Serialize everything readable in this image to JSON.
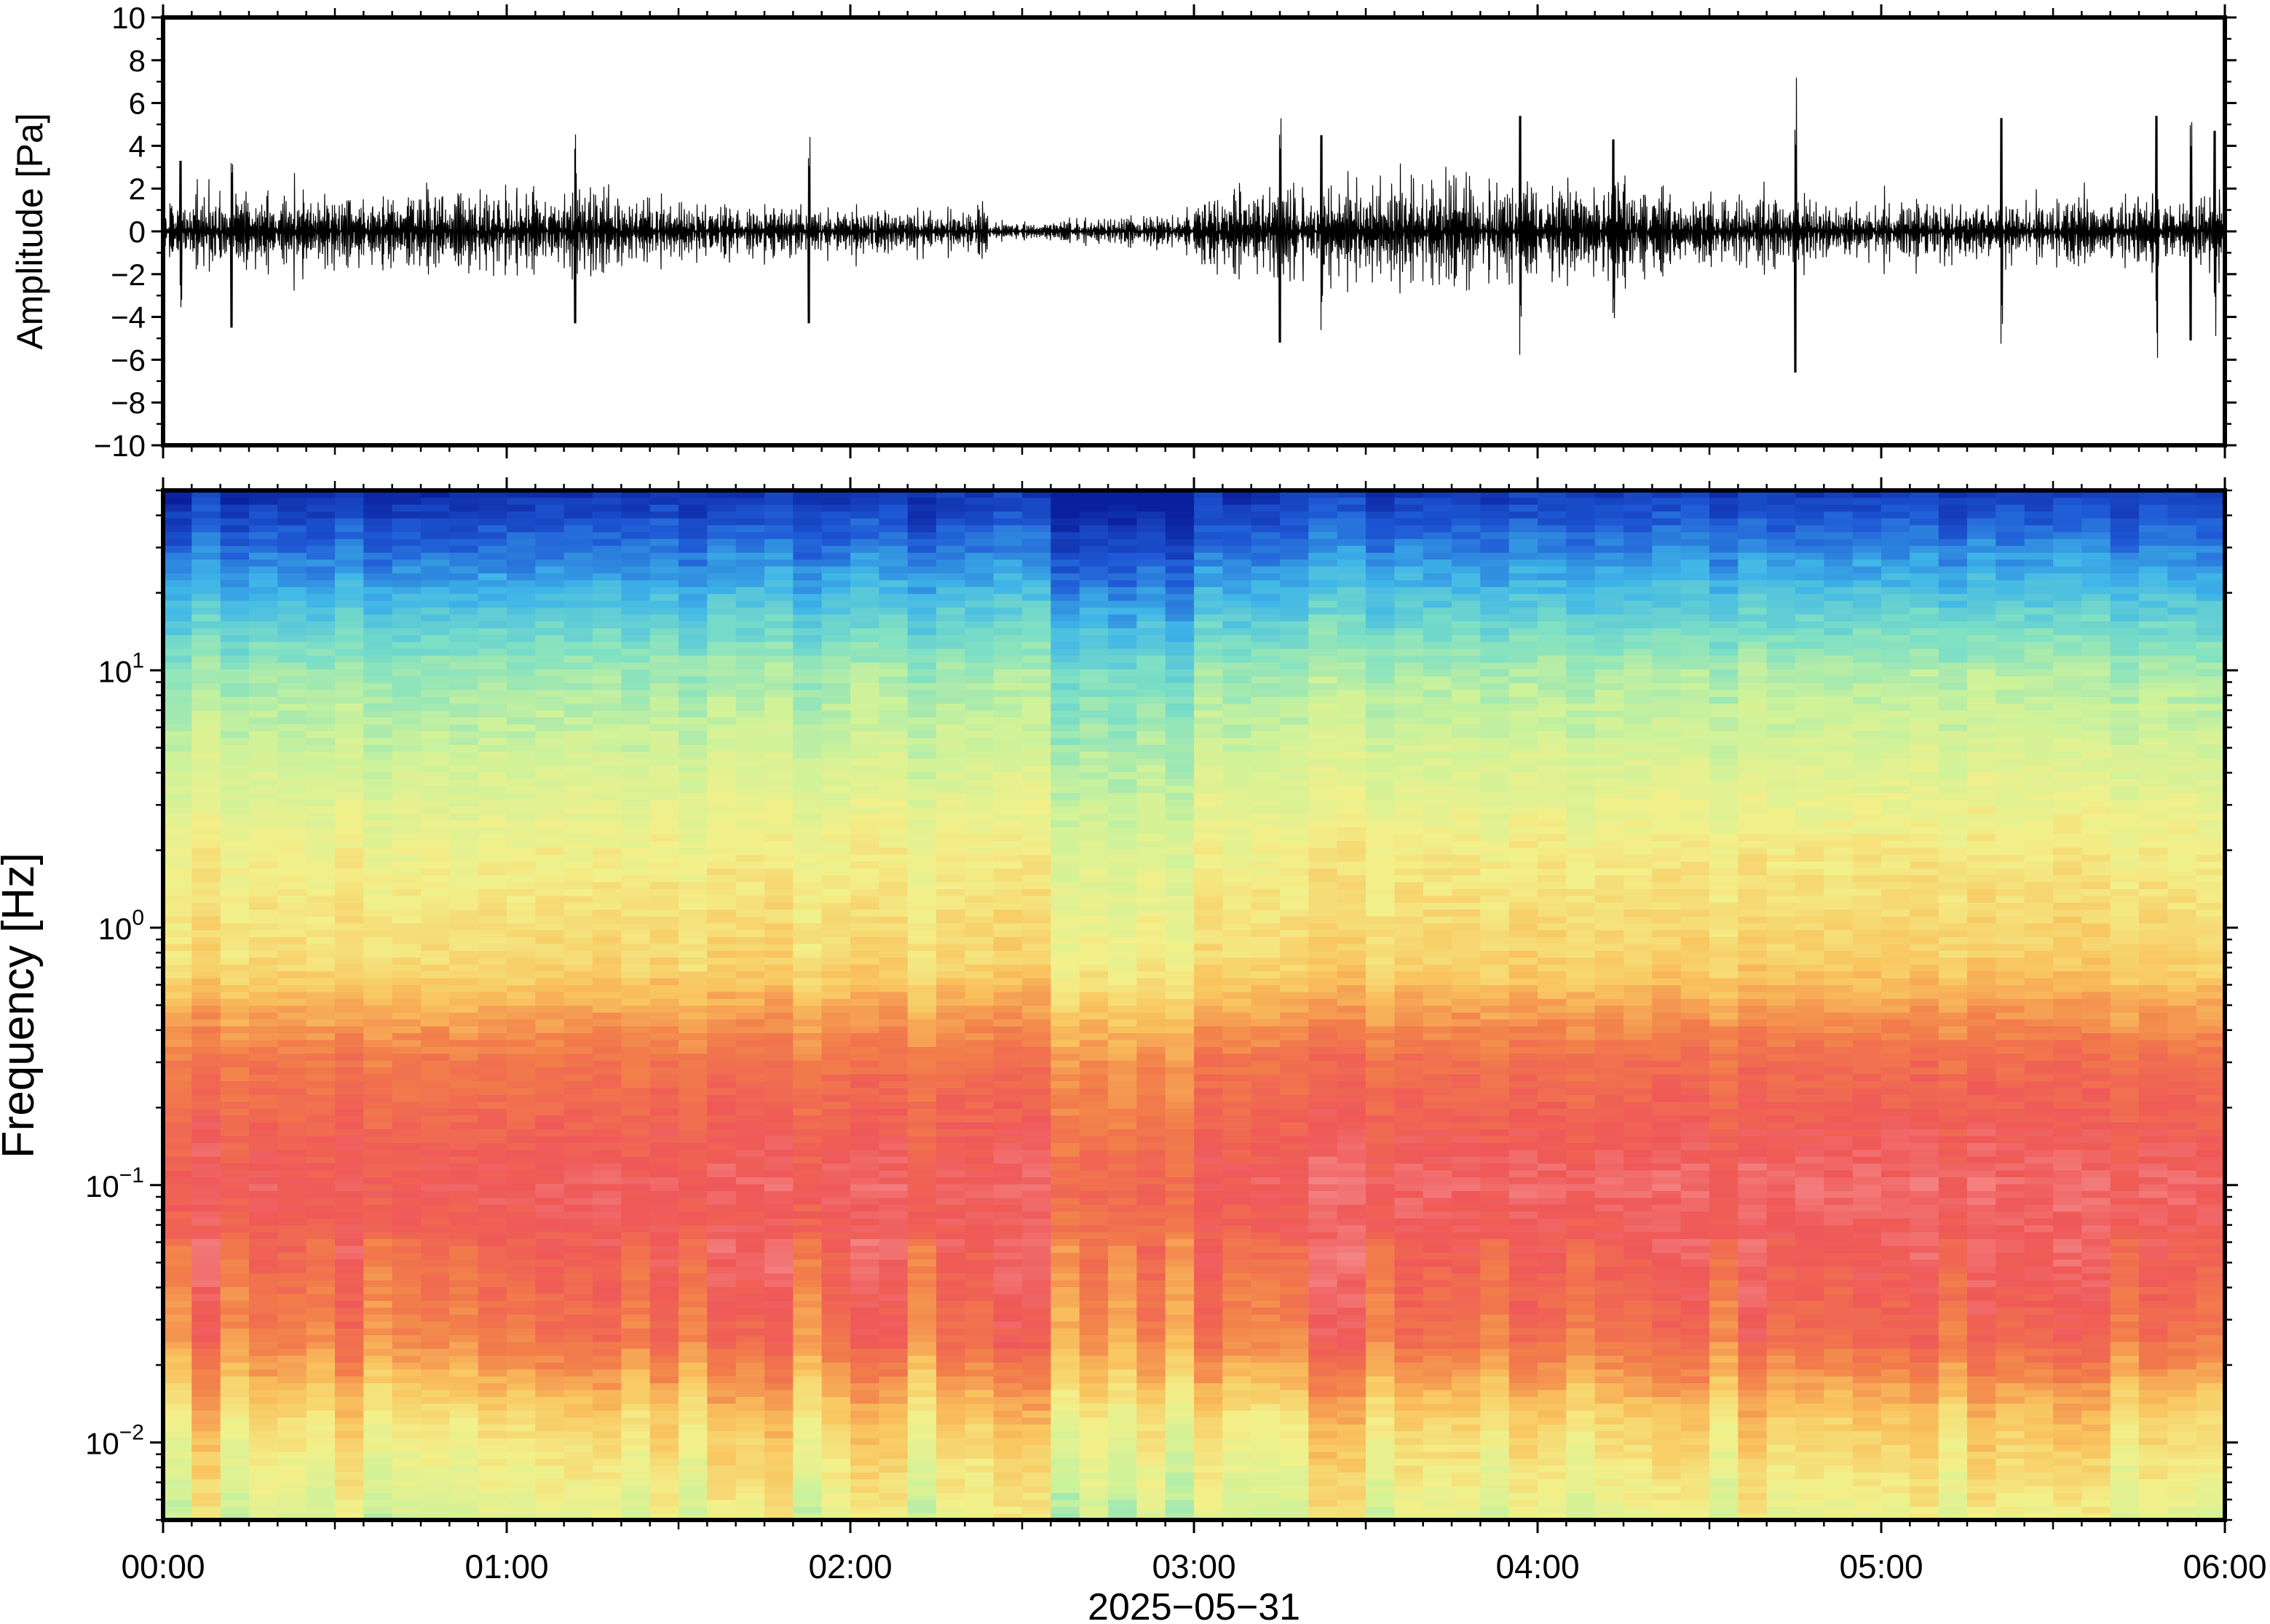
{
  "chart_data": [
    {
      "type": "line",
      "panel": "waveform",
      "ylabel": "Amplitude [Pa]",
      "ylim": [
        -10,
        10
      ],
      "yticks": [
        10,
        8,
        6,
        4,
        2,
        0,
        -2,
        -4,
        -6,
        -8,
        -10
      ],
      "ytick_labels": [
        "10",
        "8",
        "6",
        "4",
        "2",
        "0",
        "−2",
        "−4",
        "−6",
        "−8",
        "−10"
      ],
      "xlim_hours": [
        0,
        6
      ],
      "trace_color": "#000000",
      "typical_envelope_pa": 2.5,
      "peaks": [
        {
          "t_hours": 0.05,
          "value": 3.3
        },
        {
          "t_hours": 0.2,
          "value": -4.5
        },
        {
          "t_hours": 1.2,
          "value": -4.3
        },
        {
          "t_hours": 1.88,
          "value": 3.8
        },
        {
          "t_hours": 1.88,
          "value": -4.3
        },
        {
          "t_hours": 3.25,
          "value": -5.2
        },
        {
          "t_hours": 3.37,
          "value": 4.5
        },
        {
          "t_hours": 3.95,
          "value": 5.4
        },
        {
          "t_hours": 4.22,
          "value": 4.3
        },
        {
          "t_hours": 4.75,
          "value": -6.6
        },
        {
          "t_hours": 5.35,
          "value": 5.3
        },
        {
          "t_hours": 5.8,
          "value": 5.4
        },
        {
          "t_hours": 5.9,
          "value": -5.1
        },
        {
          "t_hours": 5.97,
          "value": 4.7
        }
      ]
    },
    {
      "type": "heatmap",
      "panel": "spectrogram",
      "ylabel": "Frequency [Hz]",
      "yscale": "log",
      "ylim": [
        0.005,
        50
      ],
      "yticks": [
        {
          "value": 0.01,
          "base": "10",
          "exp": "−2"
        },
        {
          "value": 0.1,
          "base": "10",
          "exp": "−1"
        },
        {
          "value": 1,
          "base": "10",
          "exp": "0"
        },
        {
          "value": 10,
          "base": "10",
          "exp": "1"
        }
      ],
      "xlim_hours": [
        0,
        6
      ],
      "xticks": [
        "00:00",
        "01:00",
        "02:00",
        "03:00",
        "04:00",
        "05:00",
        "06:00"
      ],
      "xlabel": "2025−05−31",
      "colormap": "jet",
      "colormap_stops": [
        "#0a1f9e",
        "#1f5ad6",
        "#3fb6e8",
        "#7ee0c4",
        "#cdf29a",
        "#f3f08a",
        "#f9c35e",
        "#f27f4a",
        "#ef5858",
        "#f79a9a"
      ],
      "quiet_period_hours": [
        2.6,
        3.0
      ]
    }
  ]
}
